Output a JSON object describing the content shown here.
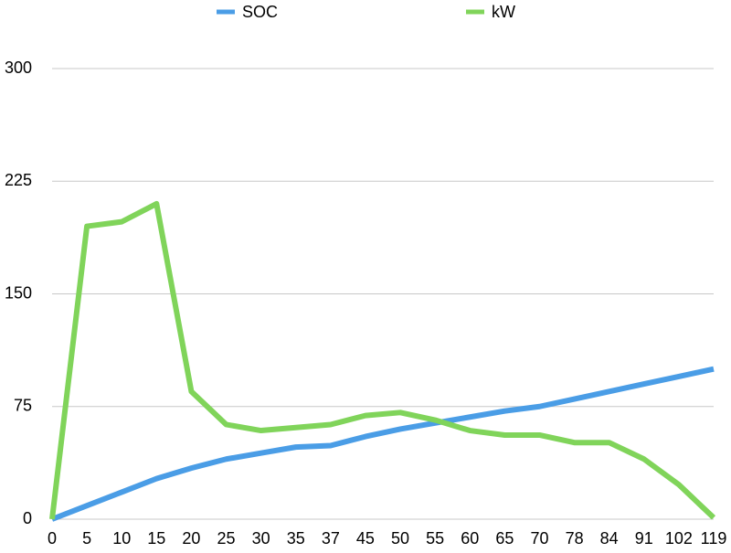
{
  "chart_data": {
    "type": "line",
    "categories": [
      "0",
      "5",
      "10",
      "15",
      "20",
      "25",
      "30",
      "35",
      "37",
      "45",
      "50",
      "55",
      "60",
      "65",
      "70",
      "78",
      "84",
      "91",
      "102",
      "119"
    ],
    "series": [
      {
        "name": "SOC",
        "color": "#4a9de6",
        "values": [
          0,
          9,
          18,
          27,
          34,
          40,
          44,
          48,
          49,
          55,
          60,
          64,
          68,
          72,
          75,
          80,
          85,
          90,
          95,
          100
        ]
      },
      {
        "name": "kW",
        "color": "#80d45a",
        "values": [
          0,
          195,
          198,
          210,
          85,
          63,
          59,
          61,
          63,
          69,
          71,
          66,
          59,
          56,
          56,
          51,
          51,
          40,
          23,
          1
        ]
      }
    ],
    "ylim": [
      0,
      300
    ],
    "yticks": [
      0,
      75,
      150,
      225,
      300
    ],
    "grid": true,
    "legend": "top"
  }
}
